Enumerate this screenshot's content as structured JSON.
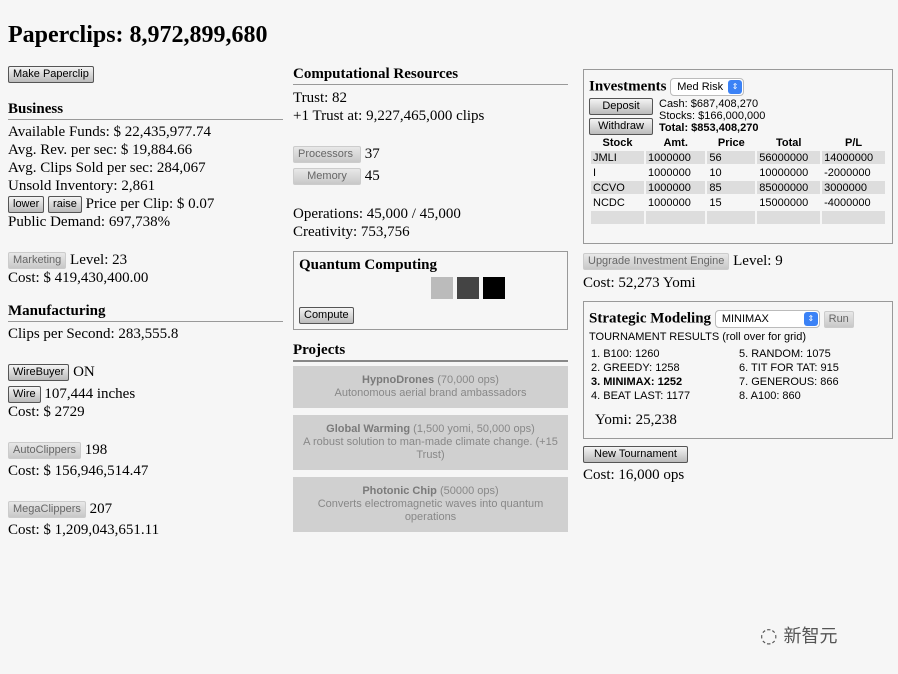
{
  "title": "Paperclips: 8,972,899,680",
  "make_button": "Make Paperclip",
  "business": {
    "heading": "Business",
    "funds": "Available Funds: $ 22,435,977.74",
    "avg_rev": "Avg. Rev. per sec: $ 19,884.66",
    "avg_clips": "Avg. Clips Sold per sec: 284,067",
    "unsold": "Unsold Inventory: 2,861",
    "lower": "lower",
    "raise": "raise",
    "price": "Price per Clip: $ 0.07",
    "demand": "Public Demand: 697,738%",
    "marketing_button": "Marketing",
    "marketing_level": "Level: 23",
    "marketing_cost": "Cost: $ 419,430,400.00"
  },
  "manufacturing": {
    "heading": "Manufacturing",
    "clips_per_sec": "Clips per Second: 283,555.8",
    "wirebuyer_button": "WireBuyer",
    "wirebuyer_status": "ON",
    "wire_button": "Wire",
    "wire_amount": "107,444 inches",
    "wire_cost": "Cost: $ 2729",
    "autoclippers_button": "AutoClippers",
    "autoclippers_count": "198",
    "autoclippers_cost": "Cost: $ 156,946,514.47",
    "megaclippers_button": "MegaClippers",
    "megaclippers_count": "207",
    "megaclippers_cost": "Cost: $ 1,209,043,651.11"
  },
  "computational": {
    "heading": "Computational Resources",
    "trust": "Trust: 82",
    "next_trust": "+1 Trust at: 9,227,465,000 clips",
    "processors_button": "Processors",
    "processors": "37",
    "memory_button": "Memory",
    "memory": "45",
    "operations": "Operations: 45,000 / 45,000",
    "creativity": "Creativity: 753,756"
  },
  "quantum": {
    "heading": "Quantum Computing",
    "compute_button": "Compute",
    "chip_colors": [
      "#bbbbbb",
      "#444444",
      "#000000"
    ]
  },
  "projects": {
    "heading": "Projects",
    "items": [
      {
        "name": "HypnoDrones",
        "cost": "(70,000 ops)",
        "desc": "Autonomous aerial brand ambassadors"
      },
      {
        "name": "Global Warming",
        "cost": "(1,500 yomi, 50,000 ops)",
        "desc": "A robust solution to man-made climate change. (+15 Trust)"
      },
      {
        "name": "Photonic Chip",
        "cost": "(50000 ops)",
        "desc": "Converts electromagnetic waves into quantum operations"
      }
    ]
  },
  "investments": {
    "heading": "Investments",
    "risk": "Med Risk",
    "deposit": "Deposit",
    "withdraw": "Withdraw",
    "cash": "Cash: $687,408,270",
    "stocks": "Stocks: $166,000,000",
    "total": "Total: $853,408,270",
    "columns": [
      "Stock",
      "Amt.",
      "Price",
      "Total",
      "P/L"
    ],
    "rows": [
      [
        "JMLI",
        "1000000",
        "56",
        "56000000",
        "14000000"
      ],
      [
        "I",
        "1000000",
        "10",
        "10000000",
        "-2000000"
      ],
      [
        "CCVO",
        "1000000",
        "85",
        "85000000",
        "3000000"
      ],
      [
        "NCDC",
        "1000000",
        "15",
        "15000000",
        "-4000000"
      ],
      [
        "",
        "",
        "",
        "",
        ""
      ]
    ],
    "upgrade_button": "Upgrade Investment Engine",
    "level": "Level: 9",
    "cost": "Cost: 52,273 Yomi"
  },
  "strategic": {
    "heading": "Strategic Modeling",
    "strategy": "MINIMAX",
    "run": "Run",
    "results_title": "TOURNAMENT RESULTS (roll over for grid)",
    "results": [
      "1. B100: 1260",
      "2. GREEDY: 1258",
      "3. MINIMAX: 1252",
      "4. BEAT LAST: 1177",
      "5. RANDOM: 1075",
      "6. TIT FOR TAT: 915",
      "7. GENEROUS: 866",
      "8. A100: 860"
    ],
    "yomi": "Yomi: 25,238",
    "new_tournament": "New Tournament",
    "cost": "Cost: 16,000 ops"
  },
  "watermark": "新智元"
}
